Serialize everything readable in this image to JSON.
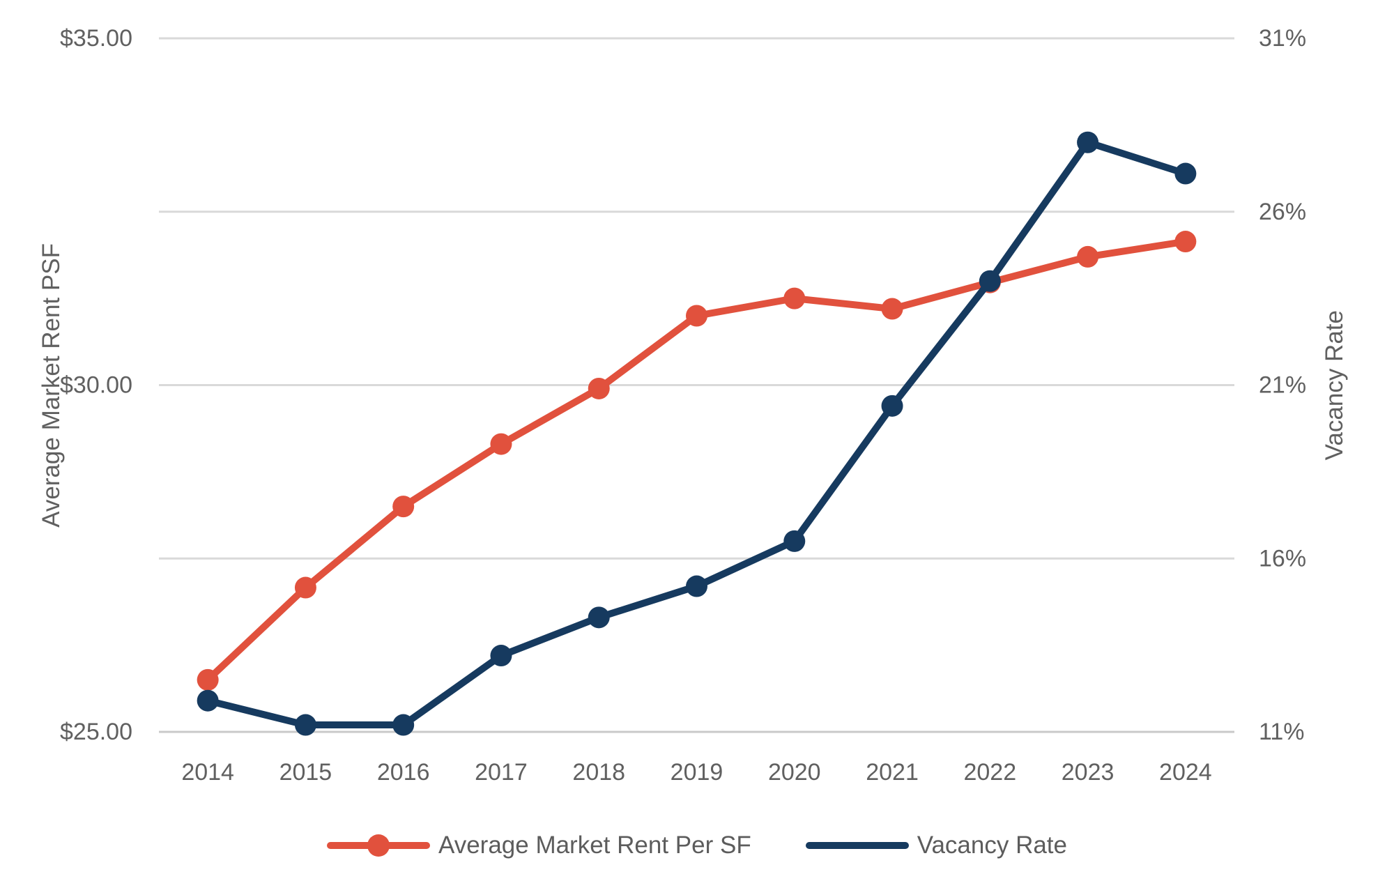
{
  "chart_data": {
    "type": "line",
    "categories": [
      "2014",
      "2015",
      "2016",
      "2017",
      "2018",
      "2019",
      "2020",
      "2021",
      "2022",
      "2023",
      "2024"
    ],
    "series": [
      {
        "name": "Average Market Rent Per SF",
        "axis": "left",
        "color": "#E1513D",
        "marker": "circle",
        "legend_marker": "line-dot",
        "values": [
          25.75,
          27.08,
          28.25,
          29.15,
          29.95,
          31.0,
          31.25,
          31.1,
          31.48,
          31.85,
          32.07
        ]
      },
      {
        "name": "Vacancy Rate",
        "axis": "right",
        "color": "#163A5F",
        "marker": "circle",
        "legend_marker": "line",
        "values": [
          11.9,
          11.2,
          11.2,
          13.2,
          14.3,
          15.2,
          16.5,
          20.4,
          24.0,
          28.0,
          27.1
        ]
      }
    ],
    "left_axis": {
      "title": "Average Market Rent PSF",
      "min": 25,
      "max": 35,
      "ticks": [
        {
          "label": "$25.00",
          "value": 25
        },
        {
          "label": "$30.00",
          "value": 30
        },
        {
          "label": "$35.00",
          "value": 35
        }
      ]
    },
    "right_axis": {
      "title": "Vacancy Rate",
      "min": 11,
      "max": 31,
      "ticks": [
        {
          "label": "11%",
          "value": 11
        },
        {
          "label": "16%",
          "value": 16
        },
        {
          "label": "21%",
          "value": 21
        },
        {
          "label": "26%",
          "value": 26
        },
        {
          "label": "31%",
          "value": 31
        }
      ]
    },
    "grid": {
      "show": true,
      "color": "#D9D9D9",
      "axis_line_color": "#C9C9C9",
      "divisions": 4
    },
    "legend_position": "bottom",
    "text_color": "#606060"
  }
}
